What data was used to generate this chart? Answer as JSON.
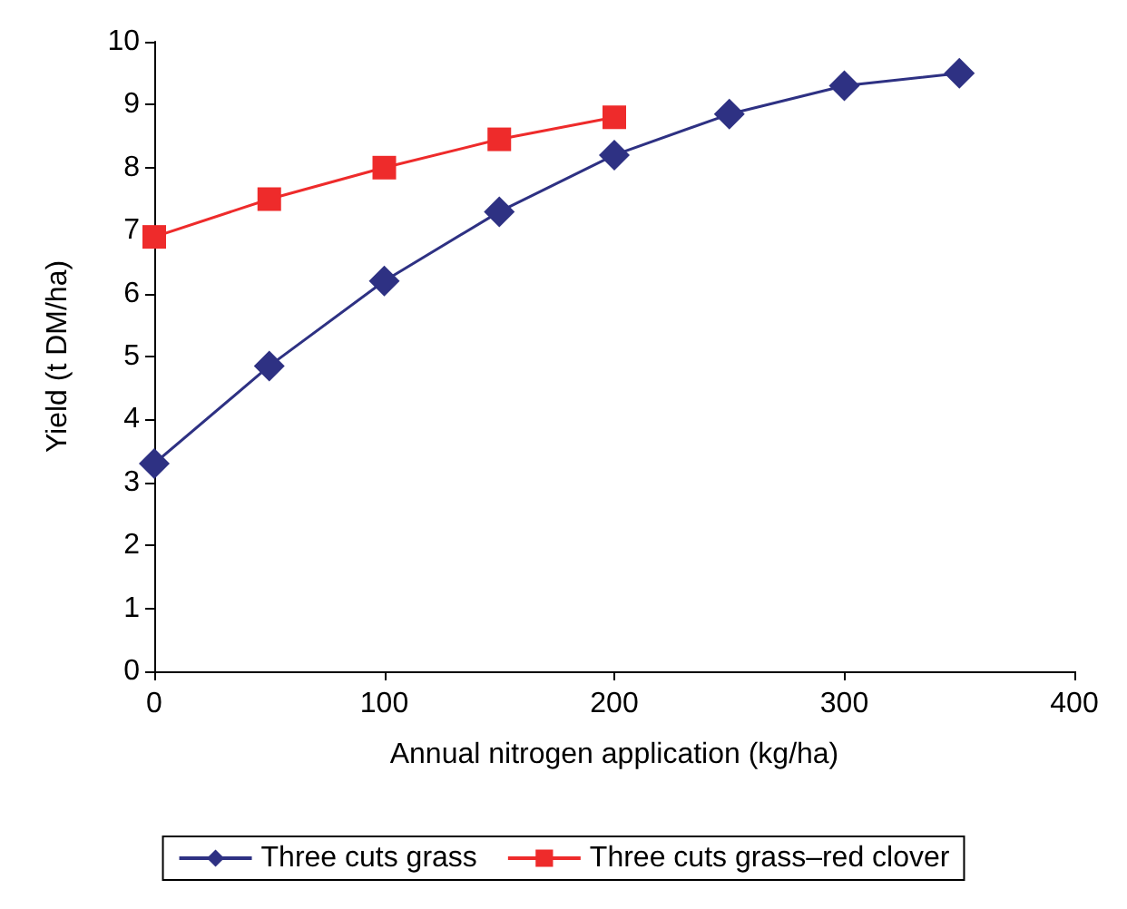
{
  "chart_data": {
    "type": "line",
    "xlabel": "Annual nitrogen application (kg/ha)",
    "ylabel": "Yield (t DM/ha)",
    "xlim": [
      0,
      400
    ],
    "xticks": [
      0,
      100,
      200,
      300,
      400
    ],
    "ylim": [
      0,
      10
    ],
    "yticks": [
      0,
      1,
      2,
      3,
      4,
      5,
      6,
      7,
      8,
      9,
      10
    ],
    "grid": false,
    "legend": "bottom",
    "line_style": "solid",
    "series": [
      {
        "name": "Three cuts grass",
        "color": "#2e3183",
        "marker": "diamond",
        "x": [
          0,
          50,
          100,
          150,
          200,
          250,
          300,
          350
        ],
        "values": [
          3.3,
          4.85,
          6.2,
          7.3,
          8.2,
          8.85,
          9.3,
          9.5
        ]
      },
      {
        "name": "Three cuts grass–red clover",
        "color": "#ee2b2b",
        "marker": "square",
        "x": [
          0,
          50,
          100,
          150,
          200
        ],
        "values": [
          6.9,
          7.5,
          8.0,
          8.45,
          8.8
        ]
      }
    ]
  }
}
